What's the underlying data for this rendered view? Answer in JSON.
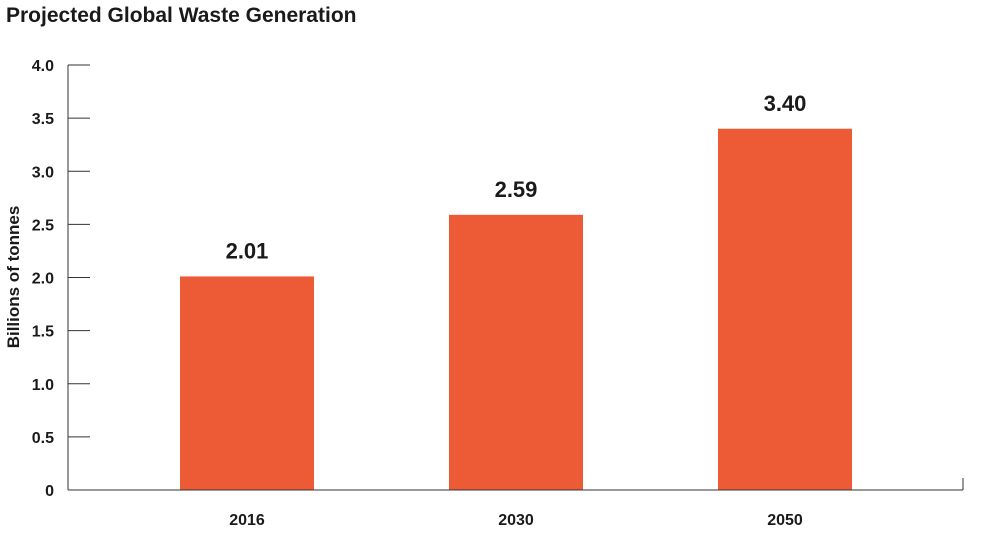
{
  "chart_data": {
    "type": "bar",
    "title": "Projected Global Waste Generation",
    "xlabel": "",
    "ylabel": "Billions of tonnes",
    "categories": [
      "2016",
      "2030",
      "2050"
    ],
    "values": [
      2.01,
      2.59,
      3.4
    ],
    "data_labels": [
      "2.01",
      "2.59",
      "3.40"
    ],
    "ylim": [
      0,
      4.0
    ],
    "yticks": [
      0,
      0.5,
      1.0,
      1.5,
      2.0,
      2.5,
      3.0,
      3.5,
      4.0
    ],
    "ytick_labels": [
      "0",
      "0.5",
      "1.0",
      "1.5",
      "2.0",
      "2.5",
      "3.0",
      "3.5",
      "4.0"
    ],
    "grid": false,
    "legend": "none",
    "bar_color": "#EC5B36"
  }
}
